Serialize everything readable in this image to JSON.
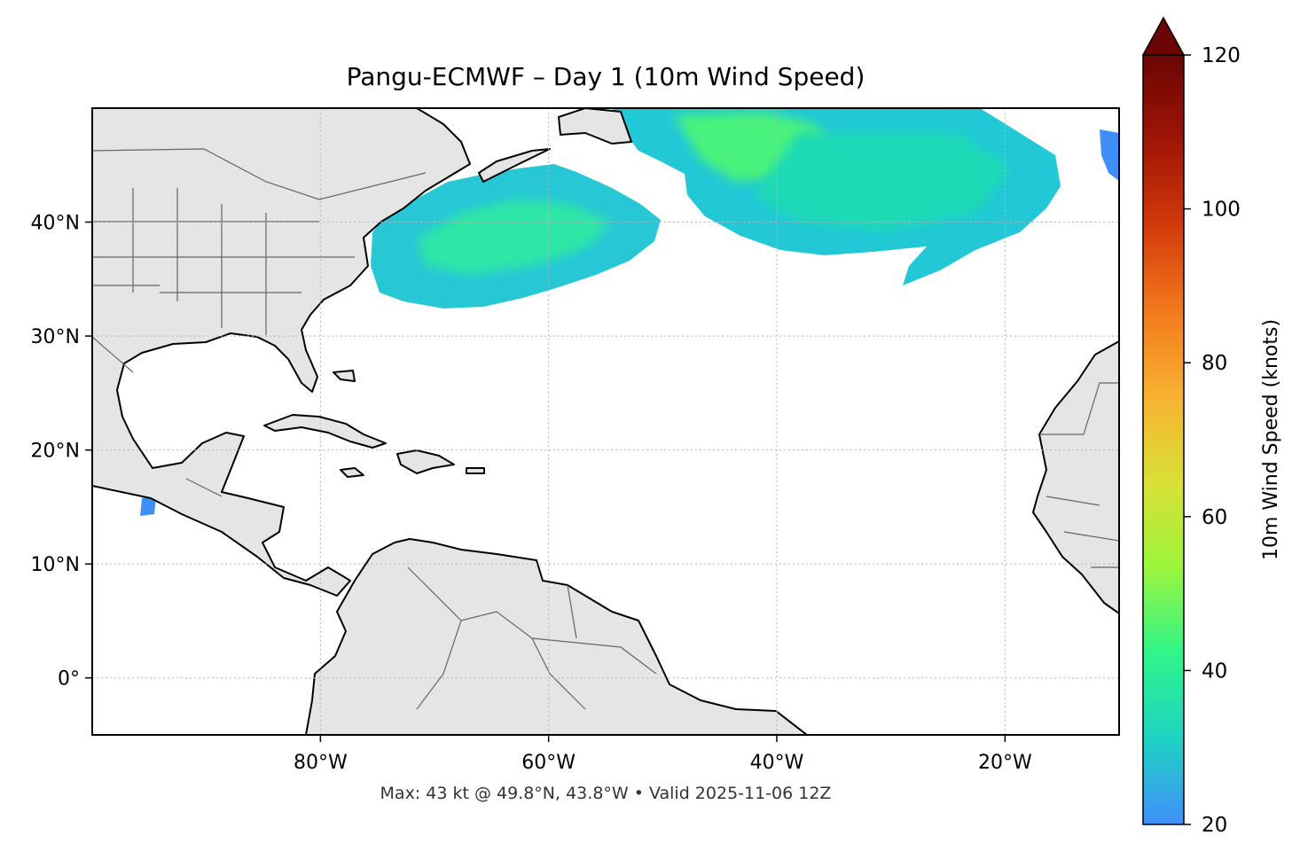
{
  "title": "Pangu-ECMWF – Day 1 (10m Wind Speed)",
  "footer": "Max: 43 kt @ 49.8°N, 43.8°W • Valid 2025-11-06 12Z",
  "map": {
    "lon_range": [
      -100,
      -10
    ],
    "lat_range": [
      -5,
      50
    ],
    "gridlines": true,
    "land_color": "#e5e5e5",
    "ocean_color": "#ffffff",
    "lon_ticks": [
      {
        "value": -80,
        "label": "80°W"
      },
      {
        "value": -60,
        "label": "60°W"
      },
      {
        "value": -40,
        "label": "40°W"
      },
      {
        "value": -20,
        "label": "20°W"
      }
    ],
    "lat_ticks": [
      {
        "value": 40,
        "label": "40°N"
      },
      {
        "value": 30,
        "label": "30°N"
      },
      {
        "value": 20,
        "label": "20°N"
      },
      {
        "value": 10,
        "label": "10°N"
      },
      {
        "value": 0,
        "label": "0°"
      }
    ]
  },
  "colorbar": {
    "label": "10m Wind Speed (knots)",
    "min": 20,
    "max": 120,
    "extend": "max",
    "ticks": [
      {
        "value": 20,
        "label": "20"
      },
      {
        "value": 40,
        "label": "40"
      },
      {
        "value": 60,
        "label": "60"
      },
      {
        "value": 80,
        "label": "80"
      },
      {
        "value": 100,
        "label": "100"
      },
      {
        "value": 120,
        "label": "120"
      }
    ],
    "colors": [
      "#3f8ffb",
      "#1ed3c3",
      "#2ef58a",
      "#9cf43c",
      "#d9e035",
      "#f8b232",
      "#f27a1c",
      "#d23a0a",
      "#9f1506",
      "#6a0504"
    ]
  }
}
